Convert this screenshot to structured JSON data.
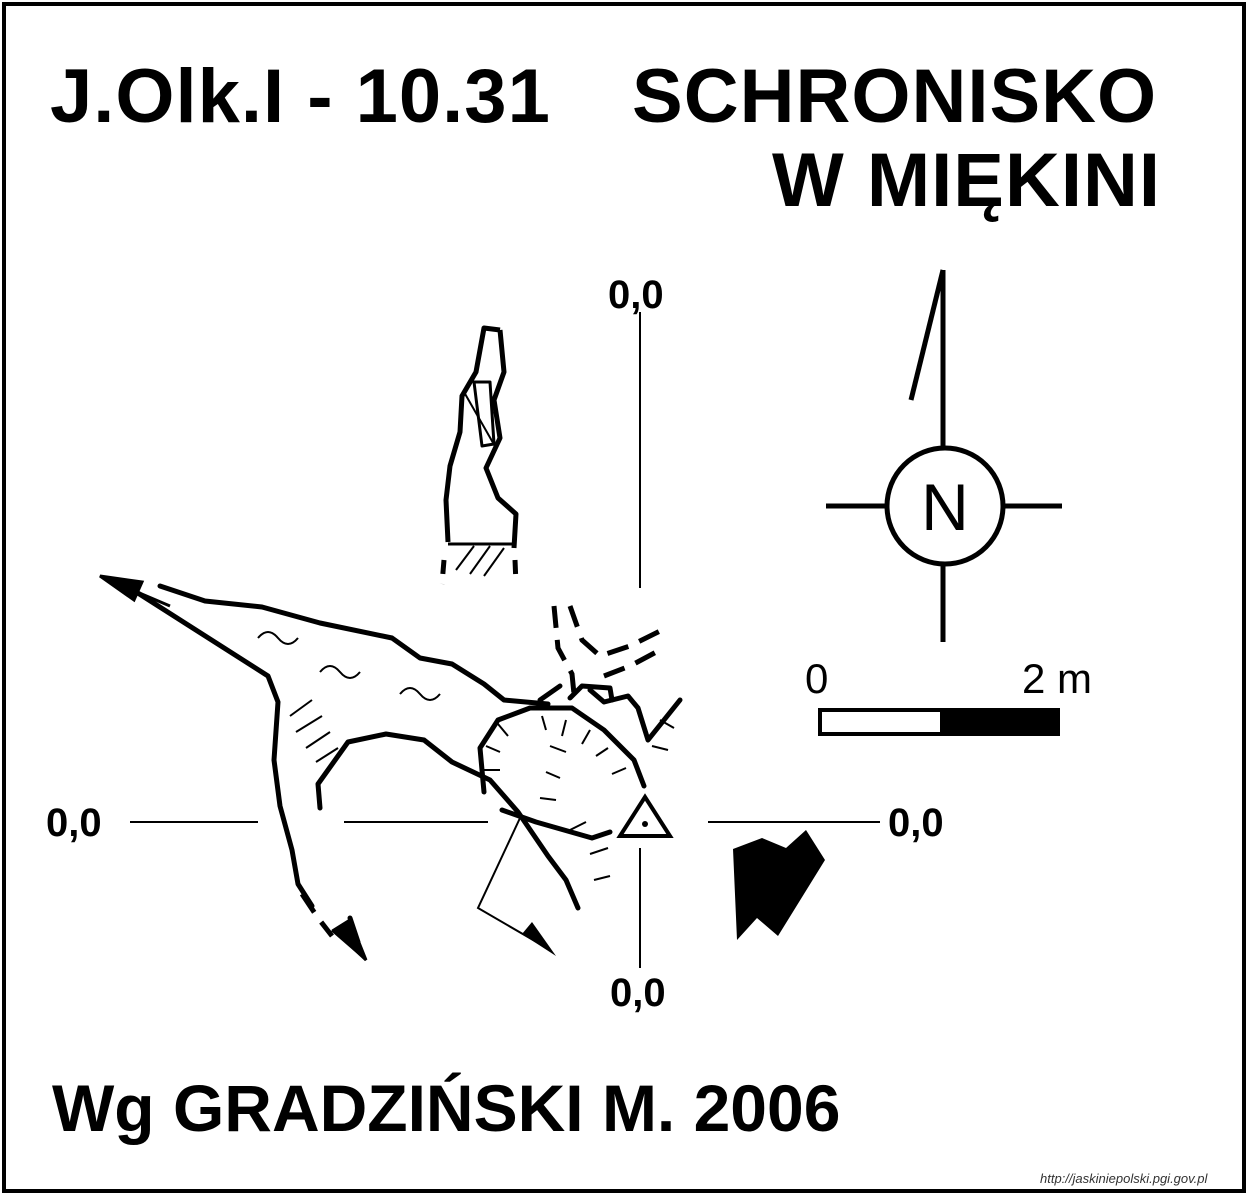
{
  "title": {
    "code": "J.Olk.I - 10.31",
    "name_line1": "SCHRONISKO",
    "name_line2": "W MIĘKINI"
  },
  "author": "Wg  GRADZIŃSKI M. 2006",
  "coordinates": {
    "top": "0,0",
    "bottom": "0,0",
    "left": "0,0",
    "right": "0,0"
  },
  "north_arrow": {
    "letter": "N"
  },
  "scale_bar": {
    "start_label": "0",
    "end_label": "2 m"
  },
  "source": "http://jaskiniepolski.pgi.gov.pl",
  "colors": {
    "ink": "#000000",
    "paper": "#ffffff"
  }
}
